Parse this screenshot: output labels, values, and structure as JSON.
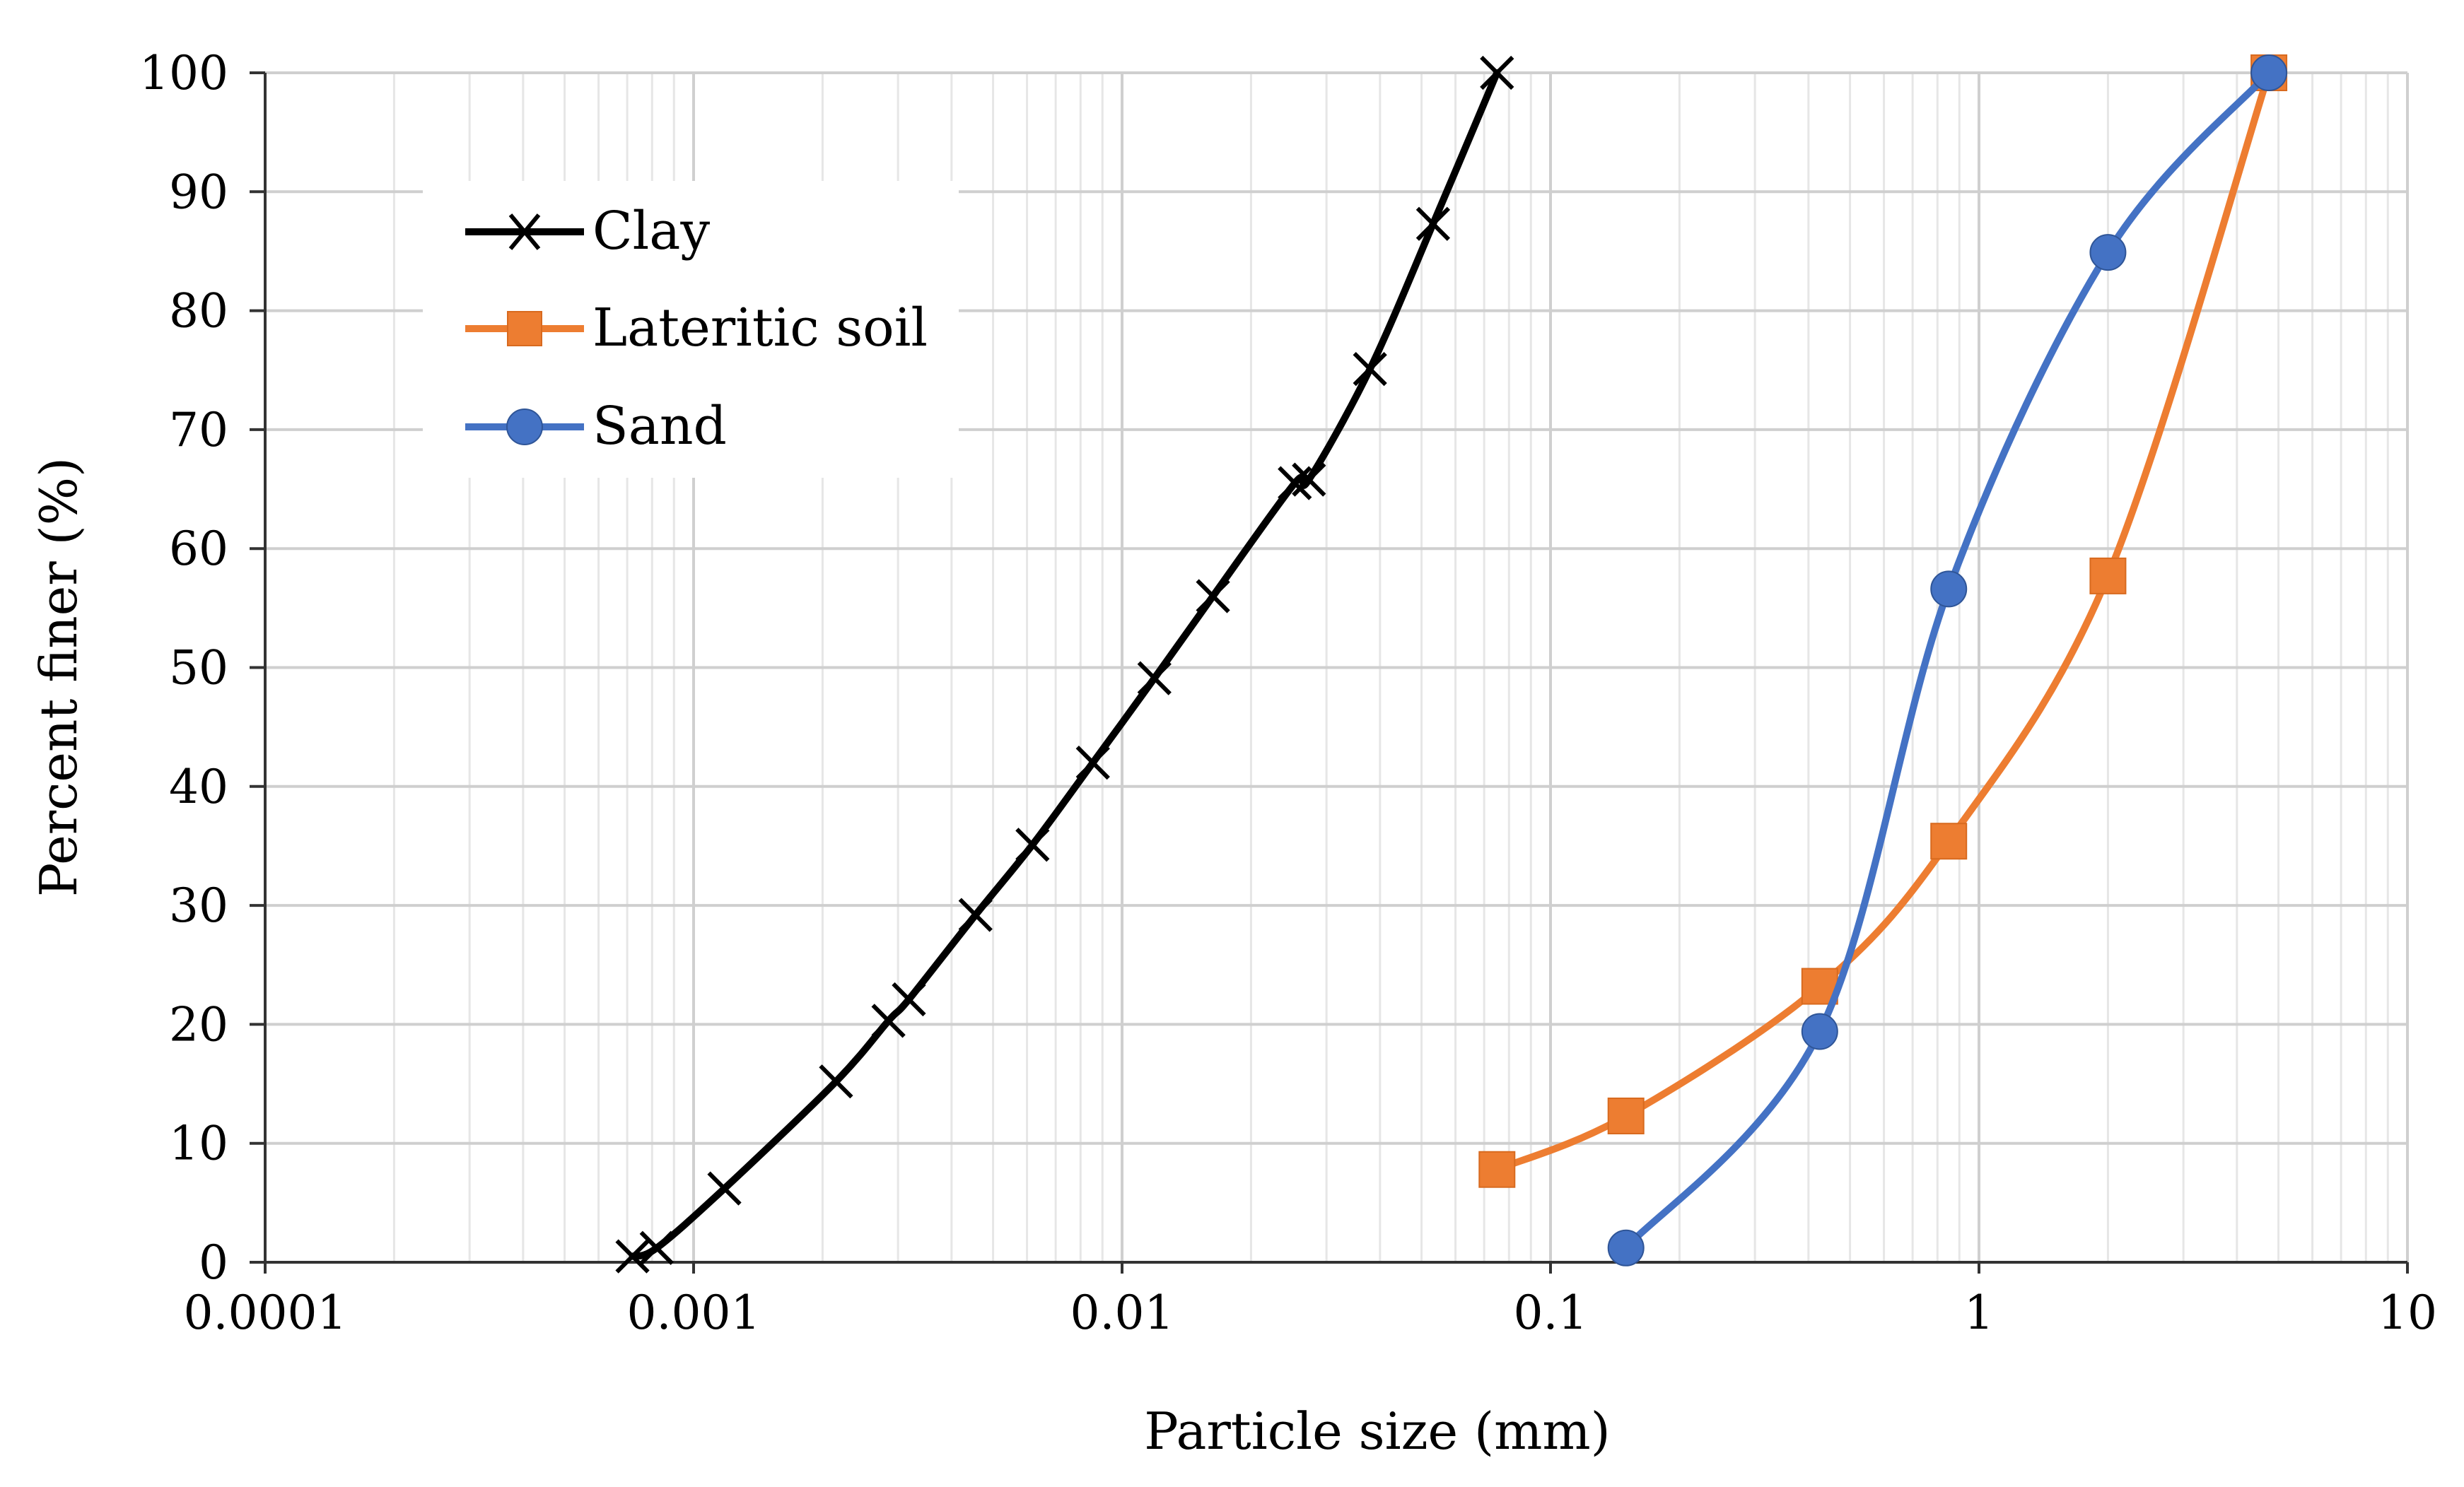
{
  "chart_data": {
    "type": "line",
    "xscale": "log",
    "xlabel": "Particle size (mm)",
    "ylabel": "Percent finer (%)",
    "xlim": [
      0.0001,
      10
    ],
    "ylim": [
      0,
      100
    ],
    "grid": true,
    "legend_position": "top-left",
    "x_ticks": [
      "0.0001",
      "0.001",
      "0.01",
      "0.1",
      "1",
      "10"
    ],
    "y_ticks": [
      "0",
      "10",
      "20",
      "30",
      "40",
      "50",
      "60",
      "70",
      "80",
      "90",
      "100"
    ],
    "series": [
      {
        "name": "Clay",
        "color": "#000000",
        "marker": "x",
        "x": [
          0.00072,
          0.00082,
          0.00118,
          0.00215,
          0.00285,
          0.00318,
          0.00455,
          0.00618,
          0.00855,
          0.0119,
          0.0163,
          0.0253,
          0.0273,
          0.0379,
          0.0532,
          0.075
        ],
        "y": [
          0.5,
          1.2,
          6.2,
          15.2,
          20.3,
          22.1,
          29.2,
          35.1,
          42.0,
          49.1,
          56.0,
          65.5,
          65.8,
          75.1,
          87.3,
          100
        ]
      },
      {
        "name": "Lateritic soil",
        "color": "#ED7D31",
        "marker": "square",
        "x": [
          0.075,
          0.15,
          0.425,
          0.85,
          2.0,
          4.75
        ],
        "y": [
          7.8,
          12.3,
          23.2,
          35.4,
          57.7,
          100
        ]
      },
      {
        "name": "Sand",
        "color": "#4472C4",
        "marker": "circle",
        "x": [
          0.15,
          0.425,
          0.85,
          2.0,
          4.75
        ],
        "y": [
          1.2,
          19.4,
          56.6,
          84.9,
          100
        ]
      }
    ]
  }
}
